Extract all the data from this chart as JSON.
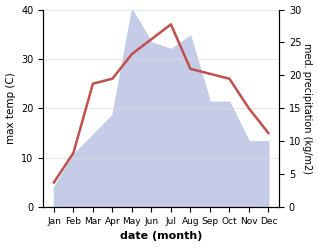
{
  "months": [
    "Jan",
    "Feb",
    "Mar",
    "Apr",
    "May",
    "Jun",
    "Jul",
    "Aug",
    "Sep",
    "Oct",
    "Nov",
    "Dec"
  ],
  "temp": [
    5,
    11,
    25,
    26,
    31,
    34,
    37,
    28,
    27,
    26,
    20,
    15
  ],
  "precip": [
    3,
    8,
    11,
    14,
    30,
    25,
    24,
    26,
    16,
    16,
    10,
    10
  ],
  "temp_color": "#c0504d",
  "precip_fill_color": "#c5cce8",
  "ylim_left": [
    0,
    40
  ],
  "ylim_right": [
    0,
    30
  ],
  "xlabel": "date (month)",
  "ylabel_left": "max temp (C)",
  "ylabel_right": "med. precipitation (kg/m2)",
  "left_yticks": [
    0,
    10,
    20,
    30,
    40
  ],
  "right_yticks": [
    0,
    5,
    10,
    15,
    20,
    25,
    30
  ]
}
